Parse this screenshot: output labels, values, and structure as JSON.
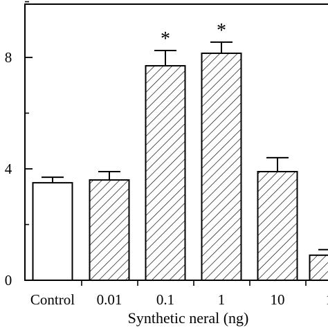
{
  "chart_data": {
    "type": "bar",
    "xlabel": "Synthetic neral (ng)",
    "ylabel": "",
    "categories": [
      "Control",
      "0.01",
      "0.1",
      "1",
      "10",
      "1"
    ],
    "series": [
      {
        "values": [
          3.5,
          3.6,
          7.7,
          8.15,
          3.9,
          0.9
        ],
        "errors": [
          0.2,
          0.3,
          0.55,
          0.4,
          0.5,
          0.2
        ],
        "significant": [
          false,
          false,
          true,
          true,
          false,
          false
        ],
        "patterns": [
          "open",
          "hatched",
          "hatched",
          "hatched",
          "hatched",
          "hatched"
        ]
      }
    ],
    "significance_marker": "*",
    "ylim": [
      0,
      10
    ],
    "yticks": [
      0,
      4,
      8
    ],
    "ytick_labels": [
      "0",
      "4",
      "8"
    ],
    "grid": false
  }
}
